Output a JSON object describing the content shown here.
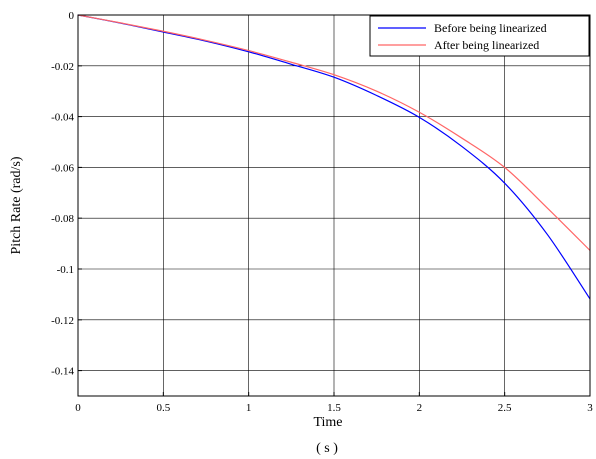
{
  "chart_data": {
    "type": "line",
    "title": "",
    "xlabel": "Time",
    "ylabel": "Pitch Rate (rad/s)",
    "x_unit": "( s )",
    "xlim": [
      0,
      3
    ],
    "ylim": [
      -0.15,
      0
    ],
    "x_ticks": [
      0,
      0.5,
      1,
      1.5,
      2,
      2.5,
      3
    ],
    "x_tick_labels": [
      "0",
      "0.5",
      "1",
      "1.5",
      "2",
      "2.5",
      "3"
    ],
    "y_ticks": [
      0,
      -0.02,
      -0.04,
      -0.06,
      -0.08,
      -0.1,
      -0.12,
      -0.14
    ],
    "y_tick_labels": [
      "0",
      "-0.02",
      "-0.04",
      "-0.06",
      "-0.08",
      "-0.1",
      "-0.12",
      "-0.14"
    ],
    "grid": true,
    "legend_position": "top-right",
    "series": [
      {
        "name": "Before being linearized",
        "color": "#0000ff",
        "x": [
          0,
          0.25,
          0.5,
          0.75,
          1.0,
          1.25,
          1.5,
          1.75,
          2.0,
          2.25,
          2.5,
          2.75,
          3.0
        ],
        "y": [
          0,
          -0.0032,
          -0.0067,
          -0.0103,
          -0.0145,
          -0.0194,
          -0.0245,
          -0.0317,
          -0.0403,
          -0.0518,
          -0.0662,
          -0.0864,
          -0.1118
        ]
      },
      {
        "name": "After being linearized",
        "color": "#ff6666",
        "x": [
          0,
          0.25,
          0.5,
          0.75,
          1.0,
          1.25,
          1.5,
          1.75,
          2.0,
          2.25,
          2.5,
          2.75,
          3.0
        ],
        "y": [
          0,
          -0.0031,
          -0.0064,
          -0.01,
          -0.014,
          -0.0186,
          -0.0235,
          -0.03,
          -0.0383,
          -0.0485,
          -0.06,
          -0.076,
          -0.0927
        ]
      }
    ]
  }
}
